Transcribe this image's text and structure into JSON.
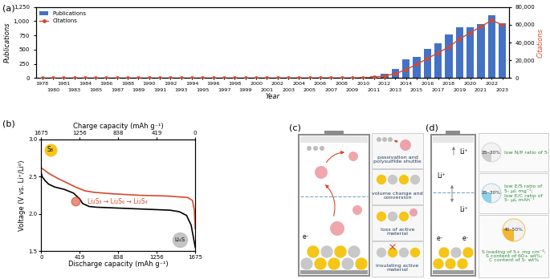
{
  "chart_data": [
    {
      "type": "bar_line",
      "label": "(a)",
      "categories": [
        "1978",
        "1980",
        "1981",
        "1983",
        "1984",
        "1985",
        "1986",
        "1987",
        "1988",
        "1989",
        "1990",
        "1991",
        "1992",
        "1993",
        "1994",
        "1995",
        "1996",
        "1997",
        "1998",
        "1999",
        "2000",
        "2001",
        "2002",
        "2003",
        "2004",
        "2005",
        "2006",
        "2007",
        "2008",
        "2009",
        "2010",
        "2011",
        "2012",
        "2013",
        "2014",
        "2015",
        "2016",
        "2017",
        "2018",
        "2019",
        "2020",
        "2021",
        "2022",
        "2023"
      ],
      "series": [
        {
          "name": "Publications",
          "type": "bar",
          "color": "#4472c4",
          "values": [
            1,
            0,
            1,
            1,
            0,
            1,
            1,
            1,
            0,
            1,
            1,
            1,
            1,
            1,
            1,
            1,
            2,
            1,
            2,
            2,
            2,
            3,
            3,
            3,
            4,
            4,
            5,
            6,
            7,
            9,
            15,
            30,
            75,
            165,
            330,
            370,
            515,
            610,
            760,
            890,
            890,
            950,
            1110,
            960
          ]
        },
        {
          "name": "Citations",
          "type": "line",
          "color": "#d9482b",
          "marker": "o",
          "axis": "y2",
          "values": [
            0,
            0,
            0,
            0,
            0,
            5,
            5,
            10,
            5,
            10,
            10,
            15,
            10,
            20,
            20,
            25,
            30,
            30,
            40,
            50,
            50,
            60,
            70,
            80,
            90,
            100,
            120,
            140,
            160,
            200,
            300,
            1000,
            2500,
            5000,
            9500,
            15500,
            22000,
            28500,
            35000,
            44000,
            51000,
            58000,
            65000,
            60000
          ]
        }
      ],
      "xlabel": "Year",
      "ylabel": "Publications",
      "y2label": "Citations",
      "ylim": [
        0,
        1250
      ],
      "yticks": [
        0,
        250,
        500,
        750,
        {
          "value": 1000,
          "label": "1,000"
        },
        {
          "value": 1250,
          "label": "1,250"
        }
      ],
      "y2lim": [
        0,
        80000
      ],
      "y2ticks": [
        0,
        {
          "value": 20000,
          "label": "20,000"
        },
        {
          "value": 40000,
          "label": "40,000"
        },
        {
          "value": 60000,
          "label": "60,000"
        },
        {
          "value": 80000,
          "label": "80,000"
        }
      ],
      "legend": "upper left"
    },
    {
      "type": "line",
      "label": "(b)",
      "xlabel": "Discharge capacity (mAh g⁻¹)",
      "x2label": "Charge capacity (mAh g⁻¹)",
      "ylabel": "Voltage (V vs. Li⁺/Li⁰)",
      "xlim": [
        0,
        1675
      ],
      "xticks": [
        0,
        419,
        838,
        1256,
        1675
      ],
      "x2lim": [
        1675,
        0
      ],
      "x2ticks": [
        1675,
        1256,
        838,
        419,
        0
      ],
      "ylim": [
        1.5,
        3.0
      ],
      "yticks": [
        1.5,
        2.0,
        2.5,
        3.0
      ],
      "series": [
        {
          "color": "#000000",
          "x": [
            0,
            10,
            40,
            80,
            150,
            250,
            350,
            419,
            450,
            520,
            600,
            800,
            1000,
            1200,
            1400,
            1500,
            1580,
            1630,
            1660,
            1675
          ],
          "values": [
            2.55,
            2.5,
            2.45,
            2.4,
            2.36,
            2.33,
            2.28,
            2.2,
            2.14,
            2.1,
            2.09,
            2.08,
            2.07,
            2.06,
            2.05,
            2.03,
            1.98,
            1.85,
            1.65,
            1.55
          ]
        },
        {
          "color": "#d9482b",
          "axis": "x2",
          "x": [
            0,
            10,
            30,
            80,
            300,
            600,
            900,
            1100,
            1200,
            1300,
            1400,
            1500,
            1600,
            1675
          ],
          "values": [
            1.8,
            2.05,
            2.18,
            2.22,
            2.24,
            2.25,
            2.27,
            2.29,
            2.31,
            2.36,
            2.42,
            2.48,
            2.55,
            2.62
          ]
        }
      ],
      "annotations": [
        {
          "text": "S₈",
          "color": "#f5c518"
        },
        {
          "text": "Li₂S₈ → Li₂S₆ → Li₂S₄",
          "color": "#d9482b"
        },
        {
          "text": "Li₂S",
          "color": "#c4c4c4"
        }
      ]
    }
  ],
  "diagram_c": {
    "label": "(c)",
    "electron_label": "e⁻",
    "boxes": [
      [
        "passivation and",
        "polysulfide shuttle"
      ],
      [
        "volume change and",
        "conversion"
      ],
      [
        "loss of active",
        "material"
      ],
      [
        "insulating active",
        "material"
      ]
    ]
  },
  "diagram_d": {
    "label": "(d)",
    "li_labels": [
      "Li⁺",
      "Li⁺",
      "Li⁺"
    ],
    "electron_labels": [
      "e⁻",
      "e⁻"
    ],
    "boxes": [
      {
        "share": "25–30%",
        "color": "#cfcfcf",
        "text": [
          "low N/P ratio of 5-"
        ]
      },
      {
        "share": "25–30%",
        "color": "#8fd0ea",
        "text": [
          "low E/S ratio of",
          "5- µL mg⁻¹;",
          "low E/C ratio of",
          "5- µL mAh⁻¹"
        ]
      },
      {
        "share": "40–50%",
        "color": "#f2b632",
        "text": [
          "S loading of 5+ mg cm⁻²;",
          "S content of 60+ wt%;",
          "C content of 5- wt%"
        ]
      }
    ]
  }
}
